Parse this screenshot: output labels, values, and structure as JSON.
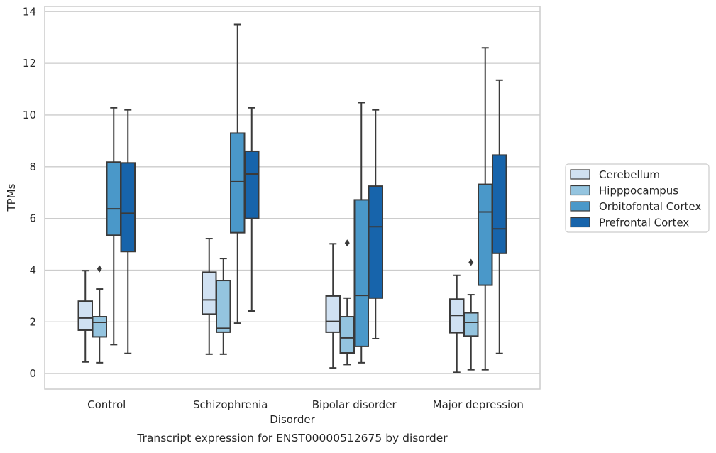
{
  "chart_data": {
    "type": "box",
    "caption": "Transcript expression for ENST00000512675 by disorder",
    "xlabel": "Disorder",
    "ylabel": "TPMs",
    "ylim": [
      -0.6,
      14.2
    ],
    "yticks": [
      0,
      2,
      4,
      6,
      8,
      10,
      12,
      14
    ],
    "grid": true,
    "legend_position": "right, outside plot",
    "categories": [
      "Control",
      "Schizophrenia",
      "Bipolar disorder",
      "Major depression"
    ],
    "series": [
      {
        "name": "Cerebellum",
        "color": "#d0e1f2",
        "boxes": [
          {
            "whisker_low": 0.45,
            "q1": 1.68,
            "median": 2.15,
            "q3": 2.8,
            "whisker_high": 3.98,
            "outliers": []
          },
          {
            "whisker_low": 0.75,
            "q1": 2.3,
            "median": 2.85,
            "q3": 3.92,
            "whisker_high": 5.22,
            "outliers": []
          },
          {
            "whisker_low": 0.22,
            "q1": 1.6,
            "median": 2.02,
            "q3": 3.0,
            "whisker_high": 5.02,
            "outliers": []
          },
          {
            "whisker_low": 0.05,
            "q1": 1.58,
            "median": 2.25,
            "q3": 2.88,
            "whisker_high": 3.8,
            "outliers": []
          }
        ]
      },
      {
        "name": "Hipppocampus",
        "color": "#94c4df",
        "boxes": [
          {
            "whisker_low": 0.42,
            "q1": 1.42,
            "median": 1.98,
            "q3": 2.2,
            "whisker_high": 3.27,
            "outliers": [
              4.05
            ]
          },
          {
            "whisker_low": 0.75,
            "q1": 1.6,
            "median": 1.75,
            "q3": 3.6,
            "whisker_high": 4.45,
            "outliers": []
          },
          {
            "whisker_low": 0.35,
            "q1": 0.8,
            "median": 1.38,
            "q3": 2.2,
            "whisker_high": 2.92,
            "outliers": [
              5.05
            ]
          },
          {
            "whisker_low": 0.15,
            "q1": 1.45,
            "median": 1.98,
            "q3": 2.35,
            "whisker_high": 3.05,
            "outliers": [
              4.3
            ]
          }
        ]
      },
      {
        "name": "Orbitofontal Cortex",
        "color": "#4a98c9",
        "boxes": [
          {
            "whisker_low": 1.12,
            "q1": 5.35,
            "median": 6.37,
            "q3": 8.18,
            "whisker_high": 10.28,
            "outliers": []
          },
          {
            "whisker_low": 1.95,
            "q1": 5.45,
            "median": 7.42,
            "q3": 9.3,
            "whisker_high": 13.5,
            "outliers": []
          },
          {
            "whisker_low": 0.42,
            "q1": 1.05,
            "median": 3.02,
            "q3": 6.72,
            "whisker_high": 10.48,
            "outliers": []
          },
          {
            "whisker_low": 0.15,
            "q1": 3.42,
            "median": 6.25,
            "q3": 7.32,
            "whisker_high": 12.6,
            "outliers": []
          }
        ]
      },
      {
        "name": "Prefrontal Cortex",
        "color": "#1764ab",
        "boxes": [
          {
            "whisker_low": 0.78,
            "q1": 4.72,
            "median": 6.2,
            "q3": 8.15,
            "whisker_high": 10.2,
            "outliers": []
          },
          {
            "whisker_low": 2.42,
            "q1": 6.0,
            "median": 7.72,
            "q3": 8.6,
            "whisker_high": 10.28,
            "outliers": []
          },
          {
            "whisker_low": 1.35,
            "q1": 2.92,
            "median": 5.68,
            "q3": 7.25,
            "whisker_high": 10.2,
            "outliers": []
          },
          {
            "whisker_low": 0.78,
            "q1": 4.65,
            "median": 5.6,
            "q3": 8.45,
            "whisker_high": 11.35,
            "outliers": []
          }
        ]
      }
    ]
  }
}
